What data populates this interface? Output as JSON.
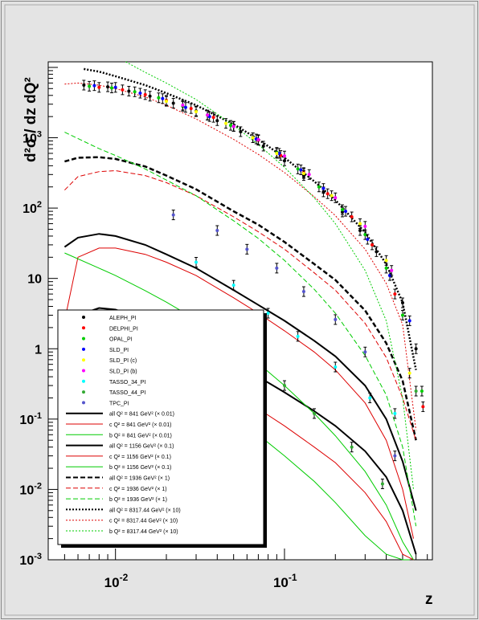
{
  "chart_data": {
    "type": "scatter",
    "title": "",
    "xlabel": "z",
    "ylabel": "d²σ / dz dQ²",
    "x_scale": "log",
    "y_scale": "log",
    "xlim": [
      0.004,
      0.75
    ],
    "ylim": [
      0.001,
      12000
    ],
    "x_ticks": [
      {
        "value": 0.01,
        "mantissa": "10",
        "exp": "-2"
      },
      {
        "value": 0.1,
        "mantissa": "10",
        "exp": "-1"
      }
    ],
    "y_ticks": [
      {
        "value": 0.001,
        "label": "10",
        "exp": "-3"
      },
      {
        "value": 0.01,
        "label": "10",
        "exp": "-2"
      },
      {
        "value": 0.1,
        "label": "10",
        "exp": "-1"
      },
      {
        "value": 1,
        "label": "1",
        "exp": ""
      },
      {
        "value": 10,
        "label": "10",
        "exp": ""
      },
      {
        "value": 100,
        "label": "10",
        "exp": "2"
      },
      {
        "value": 1000,
        "label": "10",
        "exp": "3"
      }
    ],
    "legend_position": "bottom-left",
    "marker_legend": [
      {
        "name": "ALEPH_PI",
        "color": "#000000"
      },
      {
        "name": "DELPHI_PI",
        "color": "#ff0000"
      },
      {
        "name": "OPAL_PI",
        "color": "#00cc00"
      },
      {
        "name": "SLD_PI",
        "color": "#0000ff"
      },
      {
        "name": "SLD_PI (c)",
        "color": "#ffff00"
      },
      {
        "name": "SLD_PI (b)",
        "color": "#ff00ff"
      },
      {
        "name": "TASSO_34_PI",
        "color": "#00ffff"
      },
      {
        "name": "TASSO_44_PI",
        "color": "#33aa33"
      },
      {
        "name": "TPC_PI",
        "color": "#5555cc"
      }
    ],
    "line_legend": [
      {
        "label": "all Q² = 841 GeV² (× 0.01)",
        "color": "#000000",
        "style": "solid",
        "width": 2
      },
      {
        "label": "c Q² = 841 GeV² (× 0.01)",
        "color": "#dd0000",
        "style": "solid",
        "width": 1
      },
      {
        "label": "b Q² = 841 GeV² (× 0.01)",
        "color": "#00cc00",
        "style": "solid",
        "width": 1
      },
      {
        "label": "all Q² = 1156 GeV² (× 0.1)",
        "color": "#000000",
        "style": "solid",
        "width": 2
      },
      {
        "label": "c Q² = 1156 GeV² (× 0.1)",
        "color": "#dd0000",
        "style": "solid",
        "width": 1
      },
      {
        "label": "b Q² = 1156 GeV² (× 0.1)",
        "color": "#00cc00",
        "style": "solid",
        "width": 1
      },
      {
        "label": "all Q² = 1936 GeV² (× 1)",
        "color": "#000000",
        "style": "dashed",
        "width": 2
      },
      {
        "label": "c Q² = 1936 GeV² (× 1)",
        "color": "#dd0000",
        "style": "dashed",
        "width": 1
      },
      {
        "label": "b Q² = 1936 GeV² (× 1)",
        "color": "#00cc00",
        "style": "dashed",
        "width": 1
      },
      {
        "label": "all Q² = 8317.44 GeV² (× 10)",
        "color": "#000000",
        "style": "dotted",
        "width": 2
      },
      {
        "label": "c Q² = 8317.44 GeV² (× 10)",
        "color": "#dd0000",
        "style": "dotted",
        "width": 1
      },
      {
        "label": "b Q² = 8317.44 GeV² (× 10)",
        "color": "#00cc00",
        "style": "dotted",
        "width": 1
      }
    ],
    "curves": [
      {
        "group": "841",
        "kind": "all",
        "color": "#000000",
        "style": "solid",
        "width": 2,
        "x": [
          0.005,
          0.006,
          0.008,
          0.01,
          0.015,
          0.02,
          0.03,
          0.05,
          0.07,
          0.1,
          0.15,
          0.2,
          0.3,
          0.4,
          0.5,
          0.6
        ],
        "y": [
          2.0,
          3.0,
          3.8,
          3.6,
          2.6,
          1.9,
          1.2,
          0.62,
          0.4,
          0.24,
          0.13,
          0.08,
          0.035,
          0.015,
          0.005,
          0.0012
        ]
      },
      {
        "group": "841",
        "kind": "c",
        "color": "#dd0000",
        "style": "solid",
        "width": 1,
        "x": [
          0.005,
          0.006,
          0.008,
          0.01,
          0.015,
          0.02,
          0.03,
          0.05,
          0.07,
          0.1,
          0.15,
          0.2,
          0.3,
          0.4,
          0.5,
          0.58
        ],
        "y": [
          0.3,
          0.8,
          1.0,
          0.95,
          0.75,
          0.6,
          0.4,
          0.22,
          0.14,
          0.08,
          0.04,
          0.024,
          0.009,
          0.0035,
          0.0012,
          0.001
        ]
      },
      {
        "group": "841",
        "kind": "b",
        "color": "#00cc00",
        "style": "solid",
        "width": 1,
        "x": [
          0.005,
          0.008,
          0.01,
          0.015,
          0.02,
          0.03,
          0.05,
          0.07,
          0.1,
          0.15,
          0.2,
          0.3,
          0.4,
          0.5,
          0.55
        ],
        "y": [
          2.3,
          1.4,
          1.0,
          0.6,
          0.4,
          0.22,
          0.1,
          0.06,
          0.03,
          0.013,
          0.0065,
          0.0022,
          0.0012,
          0.001,
          0.001
        ]
      },
      {
        "group": "1156",
        "kind": "all",
        "color": "#000000",
        "style": "solid",
        "width": 2,
        "x": [
          0.005,
          0.006,
          0.008,
          0.01,
          0.015,
          0.02,
          0.03,
          0.05,
          0.07,
          0.1,
          0.15,
          0.2,
          0.3,
          0.4,
          0.5,
          0.6
        ],
        "y": [
          28,
          38,
          43,
          40,
          30,
          22,
          14,
          6.8,
          4.2,
          2.5,
          1.3,
          0.78,
          0.3,
          0.1,
          0.025,
          0.005
        ]
      },
      {
        "group": "1156",
        "kind": "c",
        "color": "#dd0000",
        "style": "solid",
        "width": 1,
        "x": [
          0.005,
          0.006,
          0.008,
          0.01,
          0.015,
          0.02,
          0.03,
          0.05,
          0.07,
          0.1,
          0.15,
          0.2,
          0.3,
          0.4,
          0.5,
          0.58
        ],
        "y": [
          2.5,
          20,
          27,
          27,
          22,
          17,
          11,
          5.3,
          3.2,
          1.8,
          0.9,
          0.5,
          0.17,
          0.05,
          0.01,
          0.002
        ]
      },
      {
        "group": "1156",
        "kind": "b",
        "color": "#00cc00",
        "style": "solid",
        "width": 1,
        "x": [
          0.005,
          0.008,
          0.01,
          0.015,
          0.02,
          0.03,
          0.05,
          0.07,
          0.1,
          0.15,
          0.2,
          0.3,
          0.4,
          0.5,
          0.58
        ],
        "y": [
          23,
          14,
          11,
          6.7,
          4.6,
          2.6,
          1.1,
          0.62,
          0.3,
          0.12,
          0.058,
          0.018,
          0.006,
          0.0018,
          0.001
        ]
      },
      {
        "group": "1936",
        "kind": "all",
        "color": "#000000",
        "style": "dashed",
        "width": 2.5,
        "x": [
          0.005,
          0.006,
          0.008,
          0.01,
          0.015,
          0.02,
          0.03,
          0.05,
          0.07,
          0.1,
          0.15,
          0.2,
          0.3,
          0.4,
          0.5,
          0.6
        ],
        "y": [
          460,
          520,
          530,
          500,
          390,
          290,
          185,
          90,
          58,
          33,
          16,
          9.5,
          3.5,
          1.2,
          0.35,
          0.05
        ]
      },
      {
        "group": "1936",
        "kind": "c",
        "color": "#dd0000",
        "style": "dashed",
        "width": 1,
        "x": [
          0.005,
          0.006,
          0.008,
          0.01,
          0.015,
          0.02,
          0.03,
          0.05,
          0.07,
          0.1,
          0.15,
          0.2,
          0.3,
          0.4,
          0.5,
          0.6
        ],
        "y": [
          180,
          280,
          330,
          340,
          290,
          230,
          150,
          75,
          46,
          26,
          12,
          6.8,
          2.3,
          0.75,
          0.2,
          0.05
        ]
      },
      {
        "group": "1936",
        "kind": "b",
        "color": "#00cc00",
        "style": "dashed",
        "width": 1,
        "x": [
          0.005,
          0.008,
          0.01,
          0.015,
          0.02,
          0.03,
          0.05,
          0.07,
          0.1,
          0.15,
          0.2,
          0.3,
          0.4,
          0.5,
          0.6
        ],
        "y": [
          1200,
          700,
          560,
          360,
          250,
          150,
          66,
          37,
          18,
          7,
          3.2,
          0.8,
          0.22,
          0.04,
          0.003
        ]
      },
      {
        "group": "8317",
        "kind": "all",
        "color": "#000000",
        "style": "dotted",
        "width": 2.5,
        "x": [
          0.0065,
          0.008,
          0.01,
          0.015,
          0.02,
          0.03,
          0.05,
          0.07,
          0.1,
          0.15,
          0.2,
          0.3,
          0.4,
          0.5,
          0.6
        ],
        "y": [
          9500,
          8700,
          7500,
          5600,
          4300,
          2900,
          1550,
          950,
          520,
          240,
          130,
          45,
          16,
          4.5,
          0.5
        ]
      },
      {
        "group": "8317",
        "kind": "c",
        "color": "#dd0000",
        "style": "dotted",
        "width": 1,
        "x": [
          0.005,
          0.006,
          0.008,
          0.01,
          0.015,
          0.02,
          0.03,
          0.05,
          0.07,
          0.1,
          0.15,
          0.2,
          0.3,
          0.4,
          0.5,
          0.6
        ],
        "y": [
          5800,
          6000,
          5600,
          5000,
          3800,
          2900,
          1850,
          950,
          580,
          320,
          145,
          78,
          26,
          8.5,
          2.2,
          0.07
        ]
      },
      {
        "group": "8317",
        "kind": "b",
        "color": "#00cc00",
        "style": "dotted",
        "width": 1,
        "x": [
          0.0115,
          0.015,
          0.02,
          0.03,
          0.05,
          0.07,
          0.1,
          0.15,
          0.2,
          0.3,
          0.4,
          0.5,
          0.58
        ],
        "y": [
          12000,
          8500,
          6000,
          3500,
          1500,
          800,
          380,
          140,
          60,
          13,
          2.5,
          0.2,
          0.01
        ]
      }
    ],
    "points": [
      {
        "series": "ALEPH_PI",
        "x": [
          0.0065,
          0.009,
          0.012,
          0.016,
          0.022,
          0.03,
          0.04,
          0.055,
          0.075,
          0.1,
          0.13,
          0.17,
          0.22,
          0.28,
          0.35,
          0.42,
          0.5,
          0.6
        ],
        "y": [
          5600,
          5300,
          4600,
          3900,
          3100,
          2400,
          1750,
          1220,
          760,
          470,
          290,
          170,
          88,
          48,
          24,
          11,
          4.5,
          1.0
        ]
      },
      {
        "series": "DELPHI_PI",
        "x": [
          0.008,
          0.011,
          0.015,
          0.02,
          0.028,
          0.038,
          0.05,
          0.07,
          0.095,
          0.13,
          0.18,
          0.25,
          0.33,
          0.45,
          0.66
        ],
        "y": [
          5200,
          4800,
          4100,
          3400,
          2600,
          1950,
          1450,
          920,
          560,
          320,
          160,
          75,
          30,
          6,
          0.15
        ]
      },
      {
        "series": "OPAL_PI",
        "x": [
          0.007,
          0.0095,
          0.013,
          0.018,
          0.025,
          0.035,
          0.048,
          0.065,
          0.09,
          0.12,
          0.16,
          0.22,
          0.3,
          0.4,
          0.5,
          0.65
        ],
        "y": [
          5400,
          5100,
          4500,
          3700,
          2800,
          2100,
          1500,
          1000,
          620,
          360,
          200,
          95,
          42,
          14,
          3,
          0.25
        ]
      },
      {
        "series": "SLD_PI",
        "x": [
          0.0075,
          0.01,
          0.014,
          0.019,
          0.026,
          0.036,
          0.05,
          0.068,
          0.093,
          0.125,
          0.17,
          0.23,
          0.31,
          0.42,
          0.55
        ],
        "y": [
          5500,
          5200,
          4300,
          3600,
          2700,
          2000,
          1450,
          960,
          600,
          350,
          190,
          90,
          36,
          11,
          2.5
        ]
      },
      {
        "series": "SLD_PI (c)",
        "x": [
          0.02,
          0.03,
          0.045,
          0.065,
          0.09,
          0.13,
          0.19,
          0.28,
          0.4,
          0.55
        ],
        "y": [
          3300,
          2350,
          1600,
          1000,
          600,
          310,
          150,
          60,
          18,
          0.45
        ]
      },
      {
        "series": "SLD_PI (b)",
        "x": [
          0.025,
          0.035,
          0.05,
          0.07,
          0.1,
          0.14,
          0.2,
          0.3,
          0.43
        ],
        "y": [
          2900,
          2100,
          1450,
          940,
          550,
          300,
          140,
          55,
          13
        ]
      },
      {
        "series": "TASSO_34_PI",
        "x": [
          0.03,
          0.05,
          0.08,
          0.12,
          0.2,
          0.32,
          0.45
        ],
        "y": [
          17,
          8,
          3.2,
          1.5,
          0.55,
          0.2,
          0.12
        ]
      },
      {
        "series": "TASSO_44_PI",
        "x": [
          0.04,
          0.065,
          0.1,
          0.15,
          0.25,
          0.38,
          0.6
        ],
        "y": [
          1.6,
          0.75,
          0.3,
          0.12,
          0.04,
          0.012,
          0.25
        ]
      },
      {
        "series": "TPC_PI",
        "x": [
          0.022,
          0.04,
          0.06,
          0.09,
          0.13,
          0.2,
          0.3,
          0.45
        ],
        "y": [
          80,
          48,
          26,
          14,
          6.5,
          2.6,
          0.9,
          0.03
        ]
      }
    ]
  }
}
